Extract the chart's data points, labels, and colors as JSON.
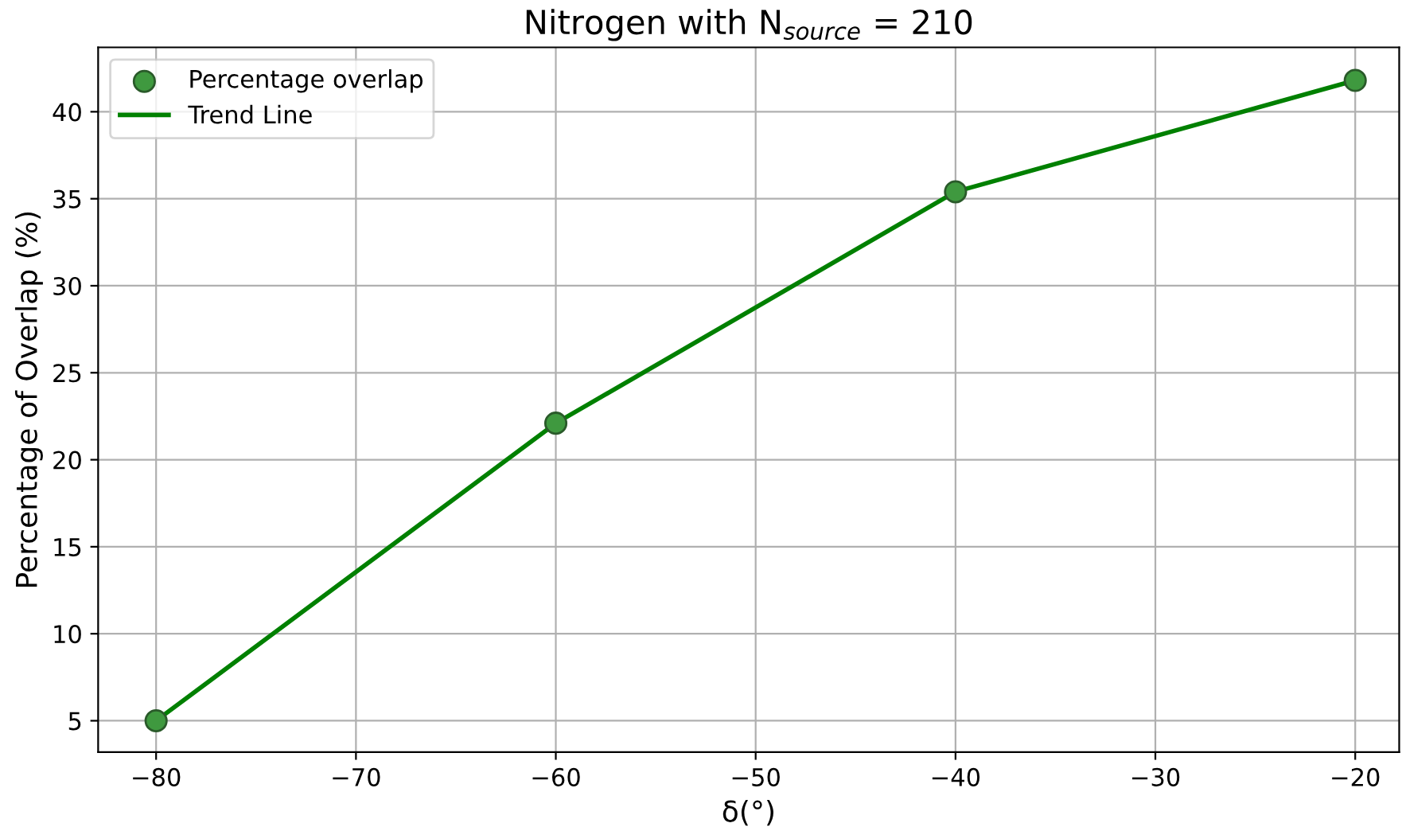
{
  "chart_data": {
    "type": "scatter",
    "title": "Nitrogen with N$_{source}$ = 210",
    "xlabel": "δ(°)",
    "ylabel": "Percentage of Overlap (%)",
    "x": [
      -80,
      -60,
      -40,
      -20
    ],
    "series": [
      {
        "name": "Percentage overlap",
        "color": "#3f993f",
        "values": [
          5.0,
          22.1,
          35.4,
          41.8
        ],
        "marker": "circle"
      },
      {
        "name": "Trend Line",
        "type": "line",
        "color": "#008000",
        "values": [
          5.0,
          22.1,
          35.4,
          41.8
        ],
        "line_style": "solid"
      }
    ],
    "xlim": [
      -82.9,
      -17.8
    ],
    "xticks": [
      {
        "value": -80,
        "label": "−80"
      },
      {
        "value": -70,
        "label": "−70"
      },
      {
        "value": -60,
        "label": "−60"
      },
      {
        "value": -50,
        "label": "−50"
      },
      {
        "value": -40,
        "label": "−40"
      },
      {
        "value": -30,
        "label": "−30"
      },
      {
        "value": -20,
        "label": "−20"
      }
    ],
    "ylim": [
      3.2,
      43.7
    ],
    "yticks": [
      5,
      10,
      15,
      20,
      25,
      30,
      35,
      40
    ],
    "grid": true,
    "legend": "top left"
  }
}
